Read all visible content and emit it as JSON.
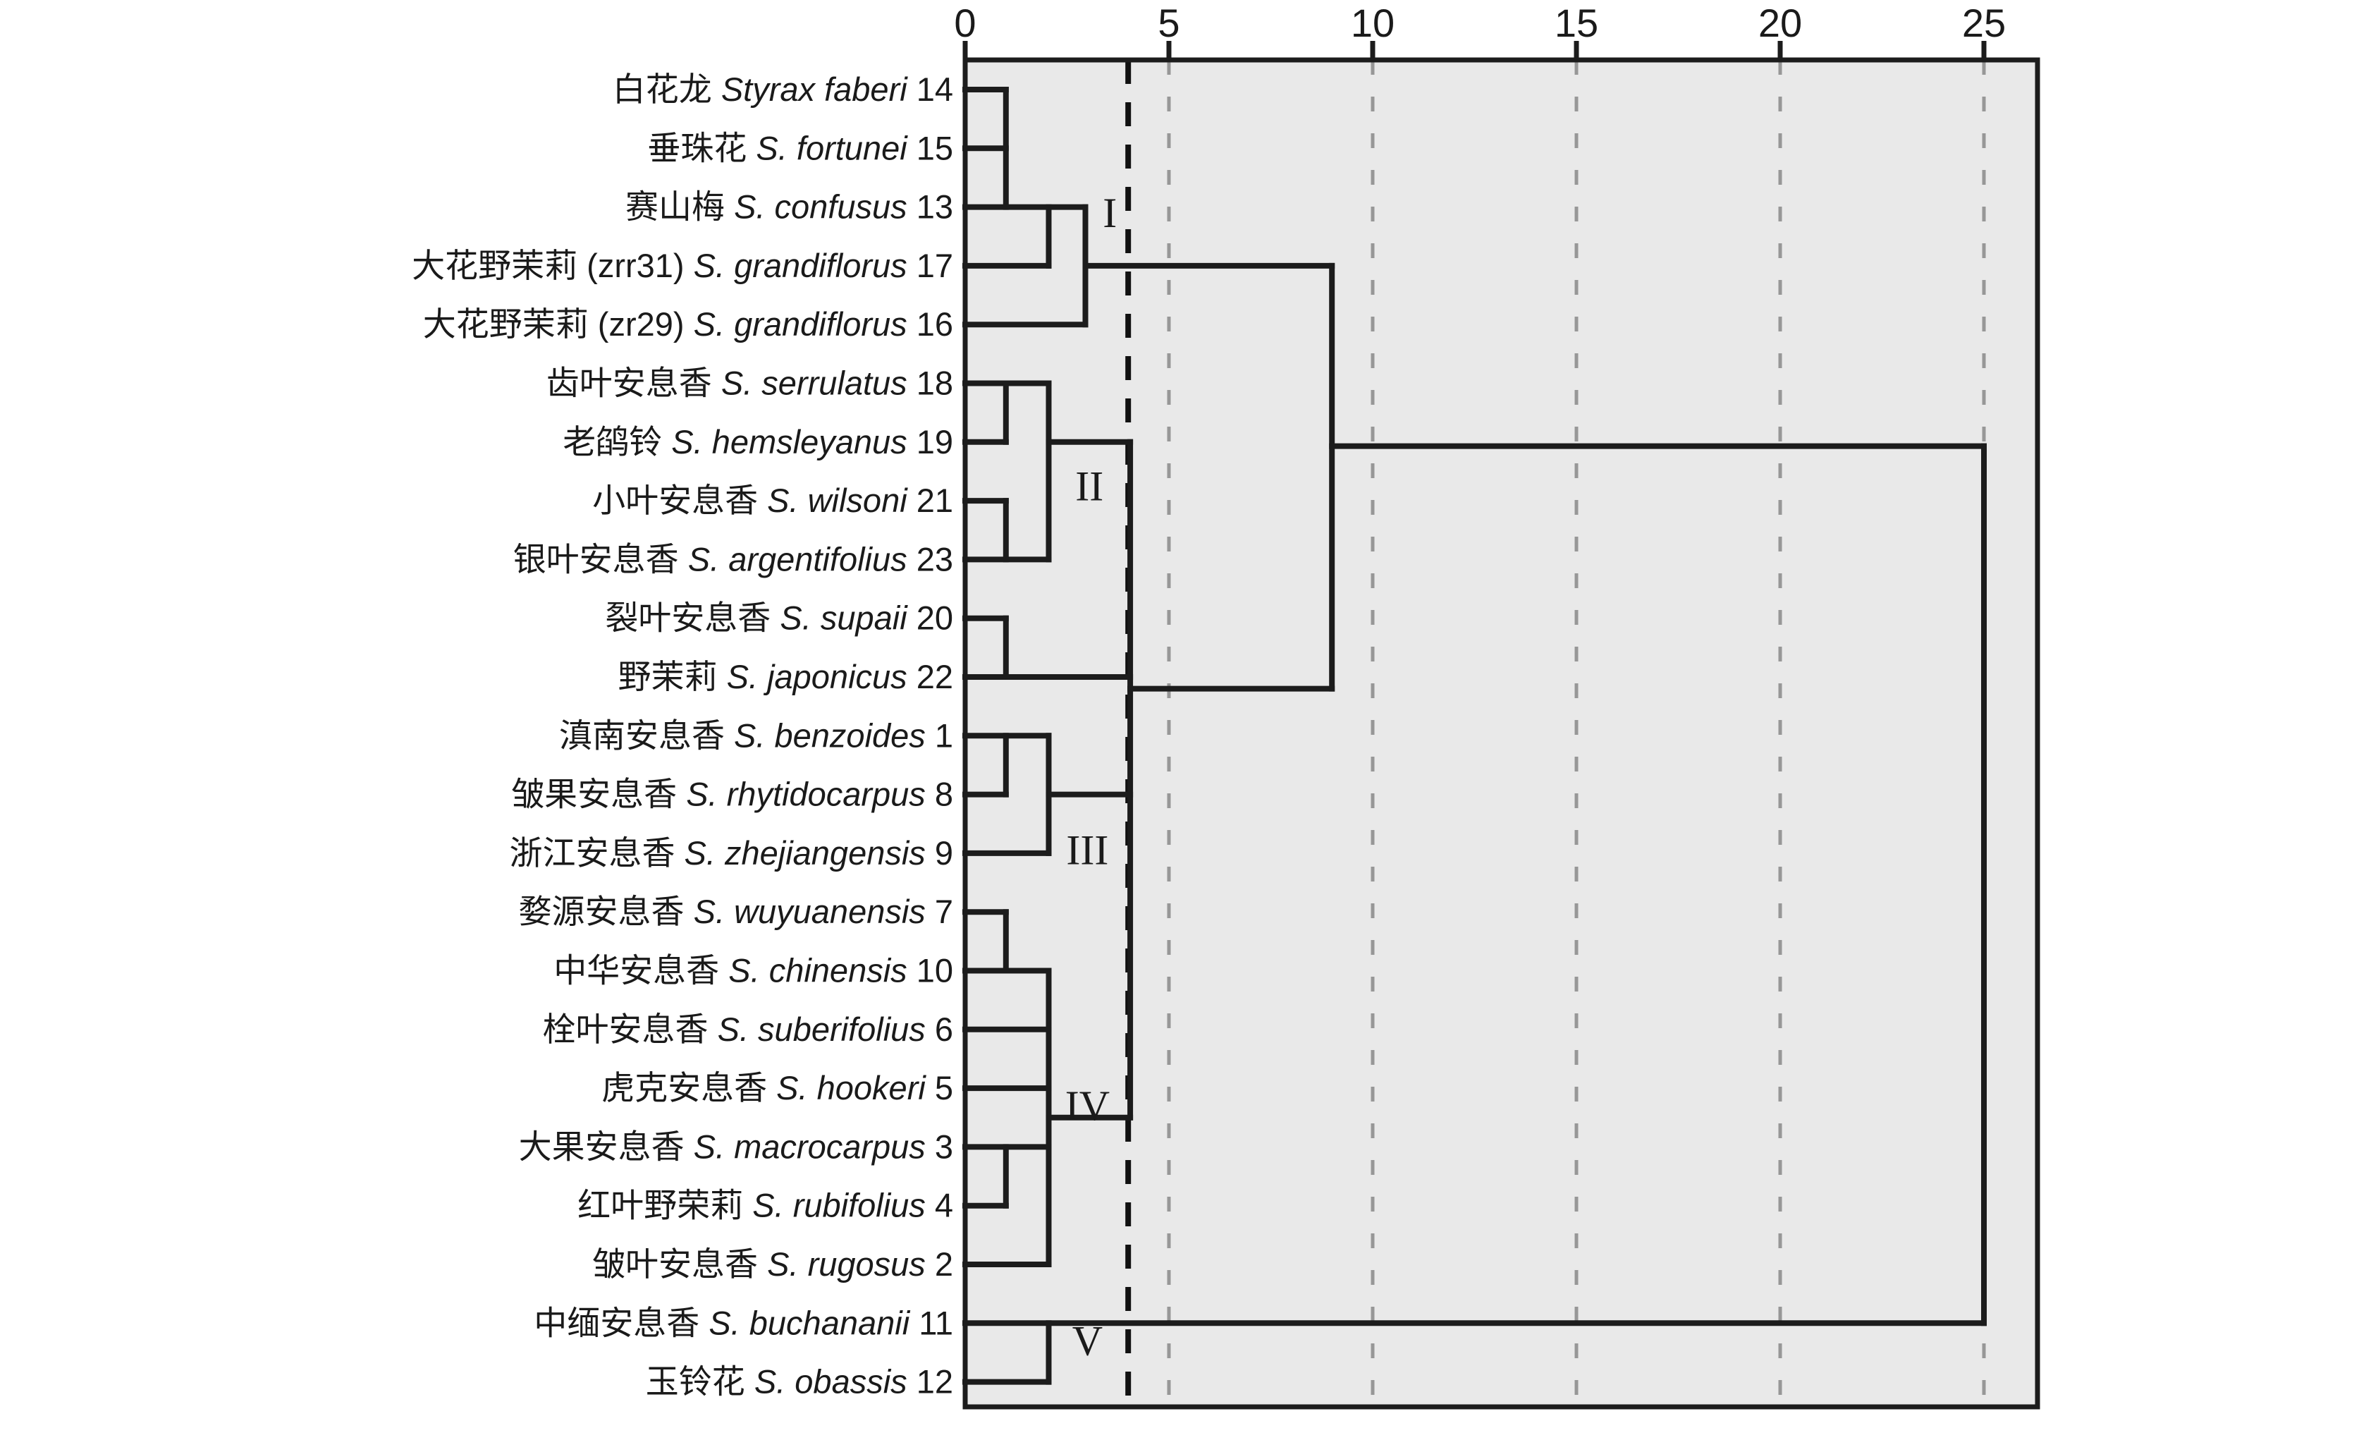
{
  "figure": {
    "kind": "hierarchical-clustering-dendrogram",
    "background_color": "#ffffff",
    "plot_background_color": "#e9e9e9",
    "line_color": "#1c1c1c",
    "gridline_color": "#979797",
    "cutline_color": "#111111",
    "text_color": "#1a1a1a"
  },
  "chart_data": {
    "type": "dendrogram",
    "orientation": "horizontal",
    "title": "",
    "xlabel": "",
    "ylabel": "",
    "axis": {
      "ticks": [
        "0",
        "5",
        "10",
        "15",
        "20",
        "25"
      ],
      "tick_values": [
        0,
        5,
        10,
        15,
        20,
        25
      ],
      "range": [
        0,
        26.3
      ],
      "gridlines": [
        5,
        10,
        15,
        20,
        25
      ],
      "cut_line": 4.0,
      "grid": true
    },
    "leaves": [
      {
        "cn": "白花龙",
        "latin": "Styrax faberi",
        "num": "14"
      },
      {
        "cn": "垂珠花",
        "latin": "S. fortunei",
        "num": "15"
      },
      {
        "cn": "赛山梅",
        "latin": "S. confusus",
        "num": "13"
      },
      {
        "cn": "大花野茉莉 (zrr31)",
        "latin": "S. grandiflorus",
        "num": "17"
      },
      {
        "cn": "大花野茉莉 (zr29)",
        "latin": "S. grandiflorus",
        "num": "16"
      },
      {
        "cn": "齿叶安息香",
        "latin": "S. serrulatus",
        "num": "18"
      },
      {
        "cn": "老鹐铃",
        "latin": "S. hemsleyanus",
        "num": "19"
      },
      {
        "cn": "小叶安息香",
        "latin": "S. wilsoni",
        "num": "21"
      },
      {
        "cn": "银叶安息香",
        "latin": "S. argentifolius",
        "num": "23"
      },
      {
        "cn": "裂叶安息香",
        "latin": "S. supaii",
        "num": "20"
      },
      {
        "cn": "野茉莉",
        "latin": "S. japonicus",
        "num": "22"
      },
      {
        "cn": "滇南安息香",
        "latin": "S. benzoides",
        "num": "1"
      },
      {
        "cn": "皱果安息香",
        "latin": "S. rhytidocarpus",
        "num": "8"
      },
      {
        "cn": "浙江安息香",
        "latin": "S. zhejiangensis",
        "num": "9"
      },
      {
        "cn": "婺源安息香",
        "latin": "S. wuyuanensis",
        "num": "7"
      },
      {
        "cn": "中华安息香",
        "latin": "S. chinensis",
        "num": "10"
      },
      {
        "cn": "栓叶安息香",
        "latin": "S. suberifolius",
        "num": "6"
      },
      {
        "cn": "虎克安息香",
        "latin": "S. hookeri",
        "num": "5"
      },
      {
        "cn": "大果安息香",
        "latin": "S. macrocarpus",
        "num": "3"
      },
      {
        "cn": "红叶野荣莉",
        "latin": "S. rubifolius",
        "num": "4"
      },
      {
        "cn": "皱叶安息香",
        "latin": "S. rugosus",
        "num": "2"
      },
      {
        "cn": "中缅安息香",
        "latin": "S. buchananii",
        "num": "11"
      },
      {
        "cn": "玉铃花",
        "latin": "S. obassis",
        "num": "12"
      }
    ],
    "cluster_labels": [
      {
        "label": "I",
        "d": 3.55,
        "row": 2.1
      },
      {
        "label": "II",
        "d": 3.05,
        "row": 6.75
      },
      {
        "label": "III",
        "d": 3.0,
        "row": 12.95
      },
      {
        "label": "IV",
        "d": 3.0,
        "row": 17.3
      },
      {
        "label": "V",
        "d": 3.0,
        "row": 21.3
      }
    ],
    "merges": [
      {
        "members": [
          "14",
          "15",
          "13"
        ],
        "distance": 1.0,
        "cluster": "I"
      },
      {
        "members": [
          "(14,15,13)",
          "17"
        ],
        "distance": 2.05,
        "cluster": "I"
      },
      {
        "members": [
          "(14,15,13,17)",
          "16"
        ],
        "distance": 2.95,
        "cluster": "I"
      },
      {
        "members": [
          "18",
          "19"
        ],
        "distance": 1.0,
        "cluster": "II"
      },
      {
        "members": [
          "21",
          "23"
        ],
        "distance": 1.0,
        "cluster": "II"
      },
      {
        "members": [
          "(18,19)",
          "(21,23)"
        ],
        "distance": 2.05,
        "cluster": "II"
      },
      {
        "members": [
          "20",
          "22"
        ],
        "distance": 1.0,
        "cluster": "II"
      },
      {
        "members": [
          "1",
          "8"
        ],
        "distance": 1.0,
        "cluster": "III"
      },
      {
        "members": [
          "(1,8)",
          "9"
        ],
        "distance": 2.05,
        "cluster": "III"
      },
      {
        "members": [
          "7",
          "10"
        ],
        "distance": 1.0,
        "cluster": "IV"
      },
      {
        "members": [
          "3",
          "4"
        ],
        "distance": 1.0,
        "cluster": "IV"
      },
      {
        "members": [
          "(7,10)",
          "6",
          "5",
          "(3,4)",
          "2"
        ],
        "distance": 2.05,
        "cluster": "IV"
      },
      {
        "members": [
          "II",
          "III",
          "IV"
        ],
        "distance": 4.05,
        "cluster": "II+III+IV"
      },
      {
        "members": [
          "I",
          "II+III+IV"
        ],
        "distance": 9.0,
        "cluster": "I-IV"
      },
      {
        "members": [
          "11",
          "12"
        ],
        "distance": 2.05,
        "cluster": "V"
      },
      {
        "members": [
          "I-IV",
          "V"
        ],
        "distance": 25.0,
        "cluster": "root"
      }
    ],
    "segments": {
      "h": [
        {
          "row": 0,
          "d1": 0,
          "d2": 1.0
        },
        {
          "row": 1,
          "d1": 0,
          "d2": 1.0
        },
        {
          "row": 2,
          "d1": 0,
          "d2": 2.95
        },
        {
          "row": 3,
          "d1": 0,
          "d2": 2.05
        },
        {
          "row": 4,
          "d1": 0,
          "d2": 2.95
        },
        {
          "row": 3,
          "d1": 2.95,
          "d2": 9.0
        },
        {
          "row": 5,
          "d1": 0,
          "d2": 1.0
        },
        {
          "row": 5,
          "d1": 1.0,
          "d2": 2.05
        },
        {
          "row": 6,
          "d1": 0,
          "d2": 1.0
        },
        {
          "row": 6,
          "d1": 2.05,
          "d2": 4.05
        },
        {
          "row": 7,
          "d1": 0,
          "d2": 1.0
        },
        {
          "row": 8,
          "d1": 0,
          "d2": 2.05
        },
        {
          "row": 9,
          "d1": 0,
          "d2": 1.0
        },
        {
          "row": 10,
          "d1": 0,
          "d2": 4.05
        },
        {
          "row": 11,
          "d1": 0,
          "d2": 2.05
        },
        {
          "row": 12,
          "d1": 0,
          "d2": 1.0
        },
        {
          "row": 12,
          "d1": 2.05,
          "d2": 4.05
        },
        {
          "row": 13,
          "d1": 0,
          "d2": 2.05
        },
        {
          "row": 14,
          "d1": 0,
          "d2": 1.0
        },
        {
          "row": 15,
          "d1": 0,
          "d2": 2.05
        },
        {
          "row": 16,
          "d1": 0,
          "d2": 2.05
        },
        {
          "row": 17,
          "d1": 0,
          "d2": 2.05
        },
        {
          "row": 18,
          "d1": 0,
          "d2": 2.05
        },
        {
          "row": 19,
          "d1": 0,
          "d2": 1.0
        },
        {
          "row": 20,
          "d1": 0,
          "d2": 2.05
        },
        {
          "row": 17.5,
          "d1": 2.05,
          "d2": 4.05
        },
        {
          "row": 10.2,
          "d1": 4.05,
          "d2": 9.0
        },
        {
          "row": 6.07,
          "d1": 9.0,
          "d2": 25.0
        },
        {
          "row": 21,
          "d1": 0,
          "d2": 25.0
        },
        {
          "row": 22,
          "d1": 0,
          "d2": 2.05
        }
      ],
      "v": [
        {
          "d": 1.0,
          "row1": 0,
          "row2": 2
        },
        {
          "d": 2.05,
          "row1": 2,
          "row2": 3
        },
        {
          "d": 2.95,
          "row1": 2,
          "row2": 4
        },
        {
          "d": 1.0,
          "row1": 5,
          "row2": 6
        },
        {
          "d": 1.0,
          "row1": 7,
          "row2": 8
        },
        {
          "d": 2.05,
          "row1": 5,
          "row2": 8
        },
        {
          "d": 1.0,
          "row1": 9,
          "row2": 10
        },
        {
          "d": 4.05,
          "row1": 6,
          "row2": 17.5
        },
        {
          "d": 1.0,
          "row1": 11,
          "row2": 12
        },
        {
          "d": 2.05,
          "row1": 11,
          "row2": 13
        },
        {
          "d": 1.0,
          "row1": 14,
          "row2": 15
        },
        {
          "d": 2.05,
          "row1": 15,
          "row2": 20
        },
        {
          "d": 1.0,
          "row1": 18,
          "row2": 19
        },
        {
          "d": 9.0,
          "row1": 3,
          "row2": 10.2
        },
        {
          "d": 25.0,
          "row1": 6.07,
          "row2": 21
        },
        {
          "d": 2.05,
          "row1": 21,
          "row2": 22
        }
      ]
    }
  }
}
